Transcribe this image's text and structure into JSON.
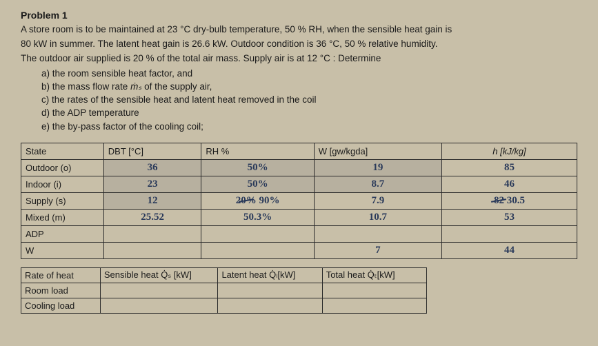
{
  "title": "Problem 1",
  "body": {
    "line1": "A store room is to be maintained at 23 °C dry-bulb temperature, 50 % RH, when the sensible heat gain is",
    "line2": "80 kW in summer. The latent heat gain is 26.6 kW. Outdoor condition is 36 °C, 50 % relative humidity.",
    "line3": "The outdoor air supplied is 20 % of the total air mass. Supply air is at 12 °C : Determine"
  },
  "items": {
    "a": "a)  the room sensible heat factor, and",
    "b_pre": "b)  the mass flow rate ",
    "b_sym": "ṁₛ",
    "b_post": " of the supply air,",
    "c": "c)  the rates of the sensible heat and latent heat removed in the coil",
    "d": "d)  the ADP temperature",
    "e": "e)  the by-pass factor of the cooling coil;"
  },
  "table1": {
    "headers": {
      "state": "State",
      "dbt": "DBT [°C]",
      "rh": "RH %",
      "w": "W [gw/kgda]",
      "h": "h [kJ/kg]"
    },
    "rows": {
      "outdoor": {
        "label": "Outdoor (o)",
        "dbt": "36",
        "rh": "50%",
        "w": "19",
        "h": "85"
      },
      "indoor": {
        "label": "Indoor (i)",
        "dbt": "23",
        "rh": "50%",
        "w": "8.7",
        "h": "46"
      },
      "supply": {
        "label": "Supply (s)",
        "dbt": "12",
        "rh_strike": "20%",
        "rh": "90%",
        "w": "7.9",
        "h_strike": "82",
        "h": "30.5"
      },
      "mixed": {
        "label": "Mixed (m)",
        "dbt": "25.52",
        "rh": "50.3%",
        "w": "10.7",
        "h": "53"
      },
      "adp": {
        "label": "ADP"
      },
      "wrow": {
        "label": "W",
        "w": "7",
        "h": "44"
      }
    }
  },
  "table2": {
    "headers": {
      "rate": "Rate of heat",
      "sensible": "Sensible heat Q̇ₛ [kW]",
      "latent": "Latent heat Q̇ₗ[kW]",
      "total": "Total heat Q̇ₜ[kW]"
    },
    "rows": {
      "room": "Room load",
      "cooling": "Cooling load"
    }
  },
  "colors": {
    "bg": "#c8bfa8",
    "ink": "#1a1a1a",
    "hand": "#2a3a5a",
    "border": "#2a2a2a"
  }
}
